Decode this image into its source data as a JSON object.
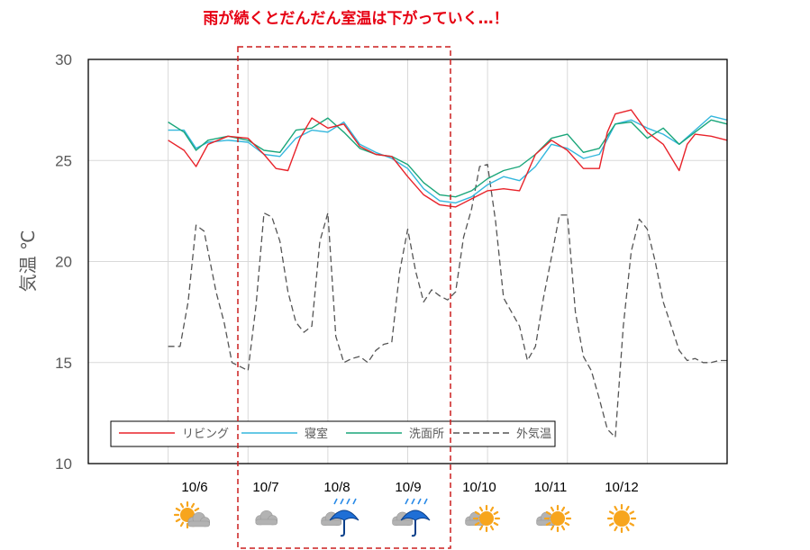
{
  "colors": {
    "living": "#e8232a",
    "bedroom": "#33b7dd",
    "washroom": "#1aa67a",
    "outdoor": "#555555",
    "highlight": "#cc1f1f",
    "title": "#e60012"
  },
  "chart_data": {
    "type": "line",
    "title": "雨が続くとだんだん室温は下がっていく…！",
    "ylabel": "気温 ℃",
    "ylim": [
      10,
      30
    ],
    "yticks": [
      "30",
      "25",
      "20",
      "15",
      "10"
    ],
    "xlim": [
      0,
      8
    ],
    "categories": [
      "10/6",
      "10/7",
      "10/8",
      "10/9",
      "10/10",
      "10/11",
      "10/12"
    ],
    "category_positions": [
      1,
      2,
      3,
      4,
      5,
      6,
      7
    ],
    "legend_position": "bottom-left",
    "grid": true,
    "highlight_range": [
      2.1,
      3.85
    ],
    "weather": [
      {
        "date": "10/6",
        "icons": [
          "sun",
          "cloud"
        ]
      },
      {
        "date": "10/7",
        "icons": [
          "cloud"
        ]
      },
      {
        "date": "10/8",
        "icons": [
          "cloud",
          "umbrella"
        ]
      },
      {
        "date": "10/9",
        "icons": [
          "cloud",
          "umbrella"
        ]
      },
      {
        "date": "10/10",
        "icons": [
          "cloud",
          "sun"
        ]
      },
      {
        "date": "10/11",
        "icons": [
          "cloud",
          "sun"
        ]
      },
      {
        "date": "10/12",
        "icons": [
          "sun"
        ]
      }
    ],
    "series": [
      {
        "name": "リビング",
        "style": "solid",
        "x": [
          1.0,
          1.2,
          1.35,
          1.5,
          1.75,
          2.0,
          2.2,
          2.35,
          2.5,
          2.65,
          2.8,
          3.0,
          3.2,
          3.4,
          3.6,
          3.8,
          4.0,
          4.2,
          4.4,
          4.6,
          4.8,
          5.0,
          5.2,
          5.4,
          5.6,
          5.8,
          6.0,
          6.2,
          6.4,
          6.5,
          6.6,
          6.8,
          7.0,
          7.2,
          7.4,
          7.5,
          7.6,
          7.8,
          8.0
        ],
        "y": [
          26.0,
          25.5,
          24.7,
          25.8,
          26.2,
          26.1,
          25.3,
          24.6,
          24.5,
          26.1,
          27.1,
          26.6,
          26.8,
          25.7,
          25.3,
          25.2,
          24.2,
          23.3,
          22.8,
          22.7,
          23.1,
          23.5,
          23.6,
          23.5,
          25.3,
          26.0,
          25.5,
          24.6,
          24.6,
          26.4,
          27.3,
          27.5,
          26.4,
          25.8,
          24.5,
          25.8,
          26.3,
          26.2,
          26.0
        ]
      },
      {
        "name": "寝室",
        "style": "solid",
        "x": [
          1.0,
          1.2,
          1.35,
          1.5,
          1.75,
          2.0,
          2.2,
          2.4,
          2.6,
          2.8,
          3.0,
          3.2,
          3.4,
          3.6,
          3.8,
          4.0,
          4.2,
          4.4,
          4.6,
          4.8,
          5.0,
          5.2,
          5.4,
          5.6,
          5.8,
          6.0,
          6.2,
          6.4,
          6.6,
          6.8,
          7.0,
          7.2,
          7.4,
          7.6,
          7.8,
          8.0
        ],
        "y": [
          26.5,
          26.5,
          25.6,
          25.9,
          26.0,
          25.9,
          25.3,
          25.2,
          26.1,
          26.5,
          26.4,
          26.9,
          25.8,
          25.4,
          25.1,
          24.6,
          23.6,
          23.0,
          22.9,
          23.2,
          23.8,
          24.2,
          24.0,
          24.7,
          25.8,
          25.6,
          25.1,
          25.3,
          26.8,
          27.0,
          26.6,
          26.3,
          25.8,
          26.5,
          27.2,
          27.0
        ]
      },
      {
        "name": "洗面所",
        "style": "solid",
        "x": [
          1.0,
          1.2,
          1.35,
          1.5,
          1.75,
          2.0,
          2.2,
          2.4,
          2.6,
          2.8,
          3.0,
          3.2,
          3.4,
          3.6,
          3.8,
          4.0,
          4.2,
          4.4,
          4.6,
          4.8,
          5.0,
          5.2,
          5.4,
          5.6,
          5.8,
          6.0,
          6.2,
          6.4,
          6.6,
          6.8,
          7.0,
          7.2,
          7.4,
          7.6,
          7.8,
          8.0
        ],
        "y": [
          26.9,
          26.4,
          25.5,
          26.0,
          26.2,
          26.0,
          25.5,
          25.4,
          26.5,
          26.6,
          27.1,
          26.4,
          25.6,
          25.3,
          25.2,
          24.8,
          23.9,
          23.3,
          23.2,
          23.5,
          24.1,
          24.5,
          24.7,
          25.3,
          26.1,
          26.3,
          25.4,
          25.6,
          26.8,
          26.9,
          26.1,
          26.6,
          25.8,
          26.4,
          27.0,
          26.8
        ]
      },
      {
        "name": "外気温",
        "style": "dashed",
        "x": [
          1.0,
          1.15,
          1.25,
          1.35,
          1.45,
          1.6,
          1.7,
          1.8,
          1.9,
          2.0,
          2.1,
          2.2,
          2.3,
          2.4,
          2.5,
          2.6,
          2.7,
          2.8,
          2.9,
          3.0,
          3.1,
          3.2,
          3.3,
          3.4,
          3.5,
          3.6,
          3.7,
          3.8,
          3.9,
          4.0,
          4.1,
          4.2,
          4.3,
          4.4,
          4.5,
          4.6,
          4.7,
          4.8,
          4.9,
          5.0,
          5.1,
          5.2,
          5.3,
          5.4,
          5.5,
          5.6,
          5.7,
          5.8,
          5.9,
          6.0,
          6.1,
          6.2,
          6.3,
          6.4,
          6.5,
          6.6,
          6.7,
          6.8,
          6.9,
          7.0,
          7.1,
          7.2,
          7.3,
          7.4,
          7.5,
          7.6,
          7.7,
          7.8,
          7.9,
          8.0
        ],
        "y": [
          15.8,
          15.8,
          18.0,
          21.8,
          21.5,
          18.5,
          17.0,
          15.0,
          14.8,
          14.6,
          17.8,
          22.4,
          22.2,
          21.0,
          18.5,
          17.0,
          16.5,
          16.8,
          21.0,
          22.4,
          16.3,
          15.0,
          15.2,
          15.3,
          15.0,
          15.6,
          15.9,
          16.0,
          19.5,
          21.6,
          19.5,
          18.0,
          18.6,
          18.3,
          18.1,
          18.5,
          21.2,
          22.6,
          24.7,
          24.8,
          22.0,
          18.2,
          17.5,
          16.8,
          15.1,
          15.8,
          18.2,
          20.2,
          22.3,
          22.3,
          17.5,
          15.3,
          14.6,
          13.2,
          11.7,
          11.3,
          16.8,
          20.5,
          22.1,
          21.6,
          20.0,
          18.0,
          16.8,
          15.6,
          15.1,
          15.2,
          15.0,
          15.0,
          15.1,
          15.1
        ]
      }
    ]
  }
}
